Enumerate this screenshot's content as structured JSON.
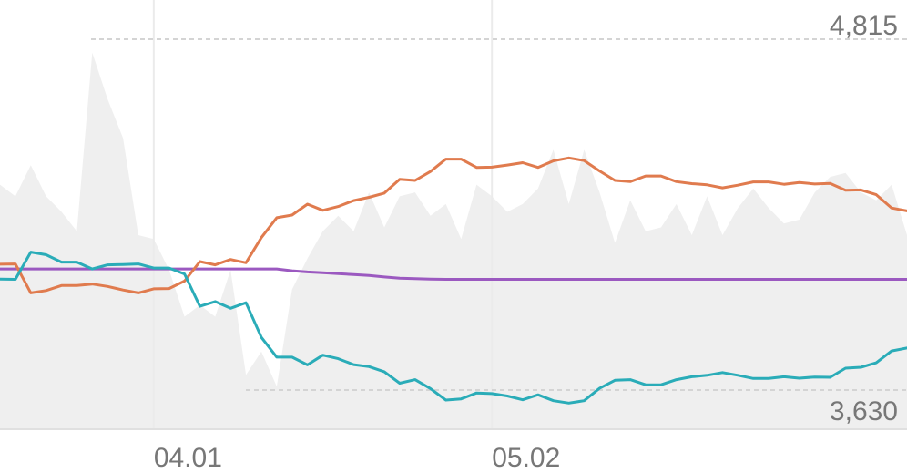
{
  "chart_data": {
    "type": "line",
    "title": "",
    "xlabel": "",
    "ylabel": "",
    "x_ticks": [
      "04.01",
      "05.02"
    ],
    "ylim": [
      3630,
      4815
    ],
    "extreme_labels": {
      "max": "4,815",
      "min": "3,630"
    },
    "grid": "vertical",
    "colors": {
      "orange": "#E07B4E",
      "teal": "#2AACB8",
      "purple": "#9B59C0",
      "area": "#EFEFEF",
      "grid": "#EBEBEB",
      "axis": "#E0E0E0",
      "ref_line": "#D4D4D4",
      "label": "#777777"
    },
    "series": [
      {
        "color": "orange",
        "values": [
          4055,
          4056,
          3958,
          3966,
          3983,
          3983,
          3988,
          3980,
          3968,
          3958,
          3972,
          3973,
          3998,
          4064,
          4053,
          4071,
          4060,
          4145,
          4212,
          4221,
          4258,
          4237,
          4250,
          4270,
          4281,
          4295,
          4342,
          4338,
          4368,
          4410,
          4410,
          4382,
          4383,
          4390,
          4398,
          4382,
          4404,
          4414,
          4405,
          4370,
          4338,
          4334,
          4353,
          4353,
          4334,
          4327,
          4323,
          4313,
          4322,
          4333,
          4333,
          4325,
          4331,
          4326,
          4328,
          4305,
          4306,
          4290,
          4245,
          4235
        ]
      },
      {
        "color": "teal",
        "values": [
          4005,
          4004,
          4096,
          4087,
          4062,
          4062,
          4039,
          4053,
          4054,
          4056,
          4042,
          4042,
          4022,
          3913,
          3929,
          3906,
          3925,
          3808,
          3741,
          3741,
          3715,
          3748,
          3736,
          3716,
          3709,
          3692,
          3653,
          3665,
          3635,
          3596,
          3600,
          3620,
          3618,
          3610,
          3597,
          3614,
          3594,
          3586,
          3594,
          3636,
          3663,
          3665,
          3648,
          3648,
          3665,
          3675,
          3680,
          3689,
          3680,
          3669,
          3669,
          3675,
          3670,
          3674,
          3673,
          3704,
          3707,
          3722,
          3762,
          3772
        ]
      },
      {
        "color": "purple",
        "values": [
          4039,
          4039,
          4039,
          4039,
          4039,
          4039,
          4039,
          4039,
          4039,
          4039,
          4039,
          4039,
          4039,
          4039,
          4039,
          4039,
          4039,
          4039,
          4039,
          4033,
          4029,
          4026,
          4023,
          4020,
          4017,
          4012,
          4008,
          4006,
          4005,
          4004,
          4004,
          4004,
          4004,
          4004,
          4004,
          4004,
          4004,
          4004,
          4004,
          4004,
          4004,
          4004,
          4004,
          4004,
          4004,
          4004,
          4004,
          4004,
          4004,
          4004,
          4004,
          4004,
          4004,
          4004,
          4004,
          4004,
          4004,
          4004,
          4004,
          4004
        ]
      }
    ],
    "background_area": {
      "color": "area",
      "values": [
        0.63,
        0.6,
        0.68,
        0.6,
        0.56,
        0.51,
        0.97,
        0.85,
        0.75,
        0.5,
        0.49,
        0.41,
        0.29,
        0.32,
        0.29,
        0.41,
        0.14,
        0.2,
        0.11,
        0.36,
        0.44,
        0.51,
        0.55,
        0.51,
        0.61,
        0.52,
        0.6,
        0.61,
        0.55,
        0.58,
        0.49,
        0.63,
        0.6,
        0.56,
        0.58,
        0.62,
        0.72,
        0.58,
        0.72,
        0.61,
        0.48,
        0.59,
        0.51,
        0.52,
        0.58,
        0.5,
        0.6,
        0.5,
        0.57,
        0.62,
        0.57,
        0.53,
        0.54,
        0.61,
        0.65,
        0.66,
        0.61,
        0.59,
        0.63,
        0.5
      ]
    }
  }
}
